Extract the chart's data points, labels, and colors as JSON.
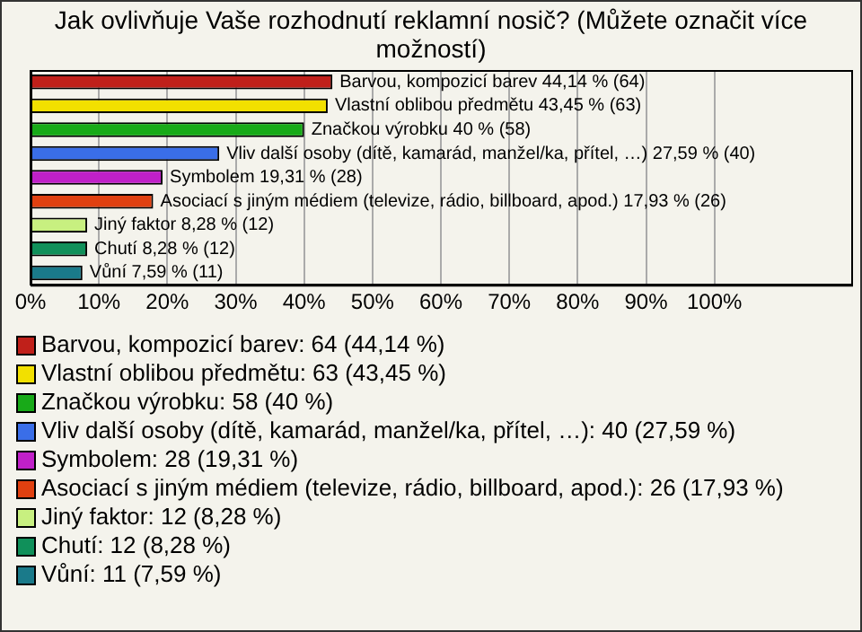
{
  "chart_data": {
    "type": "bar",
    "orientation": "horizontal",
    "stacked": true,
    "title": "Jak ovlivňuje Vaše rozhodnutí reklamní nosič? (Můžete označit více možností)",
    "categories": [
      null,
      null,
      null,
      null,
      null,
      null,
      null,
      null,
      null
    ],
    "series": [
      {
        "name": "Barvou, kompozicí barev: 64 (44,14 %)",
        "color": "#c0201a",
        "values": [
          44.14,
          null,
          null,
          null,
          null,
          null,
          null,
          null,
          null
        ],
        "value_labels": [
          "Barvou, kompozicí barev 44,14 % (64)",
          null,
          null,
          null,
          null,
          null,
          null,
          null,
          null
        ]
      },
      {
        "name": "Vlastní oblibou předmětu: 63 (43,45 %)",
        "color": "#f2e000",
        "values": [
          null,
          43.45,
          null,
          null,
          null,
          null,
          null,
          null,
          null
        ],
        "value_labels": [
          null,
          "Vlastní oblibou předmětu 43,45 % (63)",
          null,
          null,
          null,
          null,
          null,
          null,
          null
        ]
      },
      {
        "name": "Značkou výrobku: 58 (40 %)",
        "color": "#18aa18",
        "values": [
          null,
          null,
          40,
          null,
          null,
          null,
          null,
          null,
          null
        ],
        "value_labels": [
          null,
          null,
          "Značkou výrobku 40 % (58)",
          null,
          null,
          null,
          null,
          null,
          null
        ]
      },
      {
        "name": "Vliv další osoby (dítě, kamarád, manžel/ka, přítel, …): 40 (27,59 %)",
        "color": "#3a6ee8",
        "values": [
          null,
          null,
          null,
          27.59,
          null,
          null,
          null,
          null,
          null
        ],
        "value_labels": [
          null,
          null,
          null,
          "Vliv další osoby (dítě, kamarád, manžel/ka, přítel, …) 27,59 % (40)",
          null,
          null,
          null,
          null,
          null
        ]
      },
      {
        "name": "Symbolem: 28 (19,31 %)",
        "color": "#c020c8",
        "values": [
          null,
          null,
          null,
          null,
          19.31,
          null,
          null,
          null,
          null
        ],
        "value_labels": [
          null,
          null,
          null,
          null,
          "Symbolem 19,31 % (28)",
          null,
          null,
          null,
          null
        ]
      },
      {
        "name": "Asociací s jiným médiem (televize, rádio, billboard, apod.): 26 (17,93 %)",
        "color": "#e04010",
        "values": [
          null,
          null,
          null,
          null,
          null,
          17.93,
          null,
          null,
          null
        ],
        "value_labels": [
          null,
          null,
          null,
          null,
          null,
          "Asociací s jiným médiem (televize, rádio, billboard, apod.) 17,93 % (26)",
          null,
          null,
          null
        ]
      },
      {
        "name": "Jiný faktor: 12 (8,28 %)",
        "color": "#c8f080",
        "values": [
          null,
          null,
          null,
          null,
          null,
          null,
          8.28,
          null,
          null
        ],
        "value_labels": [
          null,
          null,
          null,
          null,
          null,
          null,
          "Jiný faktor 8,28 % (12)",
          null,
          null
        ]
      },
      {
        "name": "Chutí: 12 (8,28 %)",
        "color": "#10905a",
        "values": [
          null,
          null,
          null,
          null,
          null,
          null,
          null,
          8.28,
          null
        ],
        "value_labels": [
          null,
          null,
          null,
          null,
          null,
          null,
          null,
          "Chutí 8,28 % (12)",
          null
        ]
      },
      {
        "name": "Vůní: 11 (7,59 %)",
        "color": "#1a7a8a",
        "values": [
          null,
          null,
          null,
          null,
          null,
          null,
          null,
          null,
          7.59
        ],
        "value_labels": [
          null,
          null,
          null,
          null,
          null,
          null,
          null,
          null,
          "Vůní 7,59 % (11)"
        ]
      }
    ],
    "xlim": [
      0,
      120
    ],
    "xticks": [
      {
        "value": 0,
        "label": "0%"
      },
      {
        "value": 10,
        "label": "10%"
      },
      {
        "value": 20,
        "label": "20%"
      },
      {
        "value": 30,
        "label": "30%"
      },
      {
        "value": 40,
        "label": "40%"
      },
      {
        "value": 50,
        "label": "50%"
      },
      {
        "value": 60,
        "label": "60%"
      },
      {
        "value": 70,
        "label": "70%"
      },
      {
        "value": 80,
        "label": "80%"
      },
      {
        "value": 90,
        "label": "90%"
      },
      {
        "value": 100,
        "label": "100%"
      }
    ],
    "grid": "x",
    "tick_labels": "x",
    "legend": "bottom"
  }
}
